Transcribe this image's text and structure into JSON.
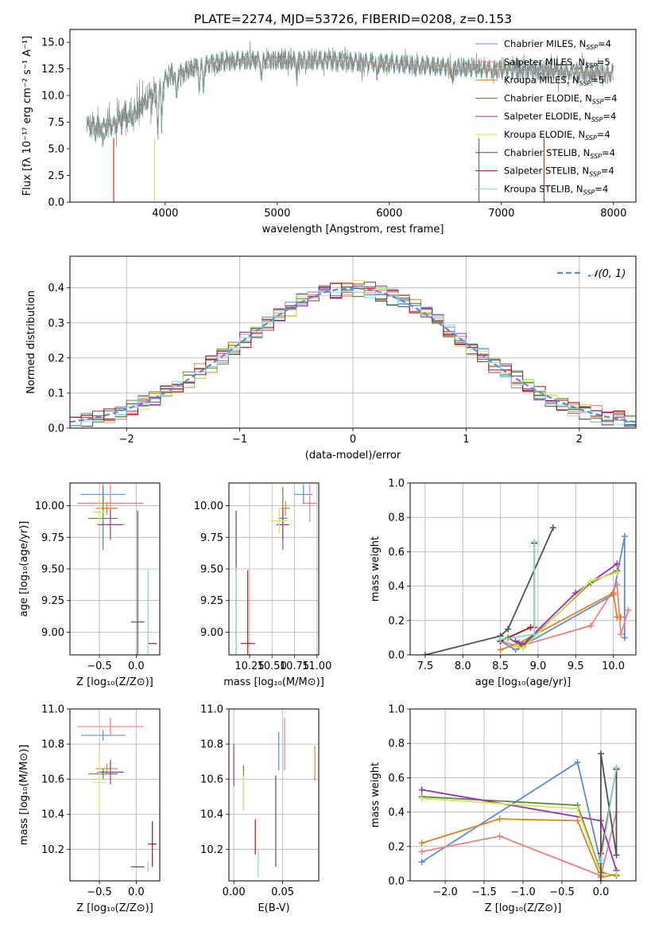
{
  "figure_title": "PLATE=2274, MJD=53726, FIBERID=0208, z=0.153",
  "colors": {
    "observed": "#808080",
    "Chabrier MILES": "#5a8bd8",
    "Salpeter MILES": "#f08080",
    "Kroupa MILES": "#e08020",
    "Chabrier ELODIE": "#5d8a3a",
    "Salpeter ELODIE": "#9a30b0",
    "Kroupa ELODIE": "#d6e45a",
    "Chabrier STELIB": "#505050",
    "Salpeter STELIB": "#b01010",
    "Kroupa STELIB": "#7fd8d8",
    "normal": "#5a8bd8"
  },
  "legend_spectrum": [
    {
      "label": "Chabrier MILES, N",
      "sub": "SSP",
      "tail": "=4"
    },
    {
      "label": "Salpeter MILES, N",
      "sub": "SSP",
      "tail": "=5"
    },
    {
      "label": "Kroupa MILES, N",
      "sub": "SSP",
      "tail": "=5"
    },
    {
      "label": "Chabrier ELODIE, N",
      "sub": "SSP",
      "tail": "=4"
    },
    {
      "label": "Salpeter ELODIE, N",
      "sub": "SSP",
      "tail": "=4"
    },
    {
      "label": "Kroupa ELODIE, N",
      "sub": "SSP",
      "tail": "=4"
    },
    {
      "label": "Chabrier STELIB, N",
      "sub": "SSP",
      "tail": "=4"
    },
    {
      "label": "Salpeter STELIB, N",
      "sub": "SSP",
      "tail": "=4"
    },
    {
      "label": "Kroupa STELIB, N",
      "sub": "SSP",
      "tail": "=4"
    }
  ],
  "legend_hist": "𝒩(0, 1)",
  "chart_data": [
    {
      "id": "spectrum",
      "type": "line",
      "xlabel": "wavelength [Angstrom, rest frame]",
      "ylabel": "Flux [fλ 10⁻¹⁷ erg cm⁻² s⁻¹ A⁻¹]",
      "xlim": [
        3150,
        8200
      ],
      "ylim": [
        0,
        16.2
      ],
      "xticks": [
        "4000",
        "5000",
        "6000",
        "7000",
        "8000"
      ],
      "yticks": [
        "0.0",
        "2.5",
        "5.0",
        "7.5",
        "10.0",
        "12.5",
        "15.0"
      ],
      "continuum": {
        "x": [
          3300,
          3500,
          3700,
          3900,
          4000,
          4200,
          4400,
          4700,
          5000,
          5500,
          6000,
          6500,
          7000,
          7500,
          8000
        ],
        "y": [
          7.2,
          7.0,
          8.0,
          10.2,
          11.5,
          12.4,
          13.0,
          13.3,
          13.3,
          13.3,
          13.0,
          12.7,
          12.4,
          12.3,
          12.1
        ]
      },
      "series": [
        "Chabrier MILES",
        "Salpeter MILES",
        "Kroupa MILES",
        "Chabrier ELODIE",
        "Salpeter ELODIE",
        "Kroupa ELODIE",
        "Chabrier STELIB",
        "Salpeter STELIB",
        "Kroupa STELIB"
      ]
    },
    {
      "id": "residuals",
      "type": "histogram",
      "xlabel": "(data-model)/error",
      "ylabel": "Normed distribution",
      "xlim": [
        -2.5,
        2.5
      ],
      "ylim": [
        0,
        0.49
      ],
      "xticks": [
        "−2",
        "−1",
        "0",
        "1",
        "2"
      ],
      "yticks": [
        "0.0",
        "0.1",
        "0.2",
        "0.3",
        "0.4"
      ],
      "bin_width": 0.1,
      "grid": true,
      "legend_location": "upper right"
    },
    {
      "id": "age_vs_Z",
      "type": "errorbar",
      "xlabel": "Z [log₁₀(Z/Z⊙)]",
      "ylabel": "age  [log₁₀(age/yr)]",
      "xlim": [
        -0.9,
        0.32
      ],
      "ylim": [
        8.82,
        10.18
      ],
      "xticks": [
        "−0.5",
        "0.0"
      ],
      "yticks": [
        "9.00",
        "9.25",
        "9.50",
        "9.75",
        "10.00"
      ],
      "points": [
        {
          "s": "Chabrier MILES",
          "x": -0.45,
          "y": 10.09,
          "ex": 0.3,
          "ey": 0.08
        },
        {
          "s": "Salpeter MILES",
          "x": -0.35,
          "y": 10.02,
          "ex": 0.45,
          "ey": 0.15
        },
        {
          "s": "Kroupa MILES",
          "x": -0.4,
          "y": 9.98,
          "ex": 0.15,
          "ey": 0.05
        },
        {
          "s": "Chabrier ELODIE",
          "x": -0.45,
          "y": 9.9,
          "ex": 0.2,
          "ey": 0.25
        },
        {
          "s": "Salpeter ELODIE",
          "x": -0.35,
          "y": 9.85,
          "ex": 0.18,
          "ey": 0.12
        },
        {
          "s": "Kroupa ELODIE",
          "x": -0.5,
          "y": 9.95,
          "ex": 0.1,
          "ey": 0.1
        },
        {
          "s": "Chabrier STELIB",
          "x": 0.02,
          "y": 9.08,
          "ex": 0.09,
          "ey": 0.88
        },
        {
          "s": "Salpeter STELIB",
          "x": 0.22,
          "y": 8.91,
          "ex": 0.06,
          "ey": 0.0
        },
        {
          "s": "Kroupa STELIB",
          "x": 0.16,
          "y": 9.0,
          "ex": 0.0,
          "ey": 0.5
        }
      ]
    },
    {
      "id": "age_vs_mass",
      "type": "errorbar",
      "xlabel": "mass [log₁₀(M/M⊙)]",
      "ylabel": "",
      "xlim": [
        10.02,
        11.02
      ],
      "ylim": [
        8.82,
        10.18
      ],
      "xticks": [
        "10.25",
        "10.50",
        "10.75",
        "11.00"
      ],
      "yticks": [
        "9.00",
        "9.25",
        "9.50",
        "9.75",
        "10.00"
      ],
      "points": [
        {
          "s": "Chabrier MILES",
          "x": 10.85,
          "y": 10.09,
          "ex": 0.1,
          "ey": 0.08
        },
        {
          "s": "Salpeter MILES",
          "x": 10.92,
          "y": 10.02,
          "ex": 0.08,
          "ey": 0.15
        },
        {
          "s": "Kroupa MILES",
          "x": 10.65,
          "y": 9.98,
          "ex": 0.05,
          "ey": 0.06
        },
        {
          "s": "Chabrier ELODIE",
          "x": 10.62,
          "y": 9.9,
          "ex": 0.05,
          "ey": 0.25
        },
        {
          "s": "Salpeter ELODIE",
          "x": 10.62,
          "y": 9.85,
          "ex": 0.07,
          "ey": 0.12
        },
        {
          "s": "Kroupa ELODIE",
          "x": 10.58,
          "y": 9.88,
          "ex": 0.1,
          "ey": 0.1
        },
        {
          "s": "Chabrier STELIB",
          "x": 10.1,
          "y": 9.08,
          "ex": 0.0,
          "ey": 0.88
        },
        {
          "s": "Salpeter STELIB",
          "x": 10.23,
          "y": 8.91,
          "ex": 0.08,
          "ey": 0.58
        },
        {
          "s": "Kroupa STELIB",
          "x": 10.1,
          "y": 8.91,
          "ex": 0.0,
          "ey": 0.6
        }
      ]
    },
    {
      "id": "mw_vs_age",
      "type": "line",
      "xlabel": "age  [log₁₀(age/yr)]",
      "ylabel": "mass weight",
      "xlim": [
        7.3,
        10.3
      ],
      "ylim": [
        0,
        1
      ],
      "xticks": [
        "7.5",
        "8.0",
        "8.5",
        "9.0",
        "9.5",
        "10.0"
      ],
      "yticks": [
        "0.0",
        "0.2",
        "0.4",
        "0.6",
        "0.8",
        "1.0"
      ],
      "series": [
        {
          "s": "Chabrier MILES",
          "x": [
            8.5,
            8.7,
            10.0,
            10.15,
            10.15
          ],
          "y": [
            0.08,
            0.03,
            0.35,
            0.69,
            0.1
          ]
        },
        {
          "s": "Salpeter MILES",
          "x": [
            8.5,
            8.75,
            9.7,
            10.05,
            10.1,
            10.2
          ],
          "y": [
            0.08,
            0.05,
            0.17,
            0.41,
            0.12,
            0.26
          ]
        },
        {
          "s": "Kroupa MILES",
          "x": [
            8.5,
            8.75,
            10.0,
            10.05,
            10.1
          ],
          "y": [
            0.03,
            0.07,
            0.36,
            0.22,
            0.22
          ]
        },
        {
          "s": "Chabrier ELODIE",
          "x": [
            8.6,
            8.8,
            9.7,
            10.05
          ],
          "y": [
            0.1,
            0.05,
            0.42,
            0.49
          ]
        },
        {
          "s": "Salpeter ELODIE",
          "x": [
            8.7,
            8.8,
            9.5,
            10.05
          ],
          "y": [
            0.08,
            0.06,
            0.36,
            0.53
          ]
        },
        {
          "s": "Kroupa ELODIE",
          "x": [
            8.7,
            8.8,
            9.7,
            10.05
          ],
          "y": [
            0.05,
            0.04,
            0.43,
            0.48
          ]
        },
        {
          "s": "Chabrier STELIB",
          "x": [
            7.5,
            8.5,
            8.6,
            9.2
          ],
          "y": [
            0.0,
            0.11,
            0.15,
            0.74
          ]
        },
        {
          "s": "Salpeter STELIB",
          "x": [
            8.5,
            8.9,
            8.95,
            8.95
          ],
          "y": [
            0.08,
            0.16,
            0.16,
            0.65
          ]
        },
        {
          "s": "Kroupa STELIB",
          "x": [
            8.5,
            8.95,
            8.95
          ],
          "y": [
            0.09,
            0.12,
            0.66
          ]
        }
      ]
    },
    {
      "id": "mass_vs_Z",
      "type": "errorbar",
      "xlabel": "Z [log₁₀(Z/Z⊙)]",
      "ylabel": "mass [log₁₀(M/M⊙)]",
      "xlim": [
        -0.9,
        0.32
      ],
      "ylim": [
        10.02,
        11.0
      ],
      "xticks": [
        "−0.5",
        "0.0"
      ],
      "yticks": [
        "10.2",
        "10.4",
        "10.6",
        "10.8",
        "11.0"
      ],
      "points": [
        {
          "s": "Chabrier MILES",
          "x": -0.45,
          "y": 10.85,
          "ex": 0.3,
          "ey": 0.03
        },
        {
          "s": "Salpeter MILES",
          "x": -0.35,
          "y": 10.9,
          "ex": 0.45,
          "ey": 0.05
        },
        {
          "s": "Kroupa MILES",
          "x": -0.4,
          "y": 10.66,
          "ex": 0.15,
          "ey": 0.03
        },
        {
          "s": "Chabrier ELODIE",
          "x": -0.45,
          "y": 10.63,
          "ex": 0.2,
          "ey": 0.03
        },
        {
          "s": "Salpeter ELODIE",
          "x": -0.35,
          "y": 10.64,
          "ex": 0.18,
          "ey": 0.07
        },
        {
          "s": "Kroupa ELODIE",
          "x": -0.5,
          "y": 10.58,
          "ex": 0.1,
          "ey": 0.16
        },
        {
          "s": "Chabrier STELIB",
          "x": 0.02,
          "y": 10.1,
          "ex": 0.09,
          "ey": 0.0
        },
        {
          "s": "Salpeter STELIB",
          "x": 0.22,
          "y": 10.23,
          "ex": 0.06,
          "ey": 0.13
        },
        {
          "s": "Kroupa STELIB",
          "x": 0.16,
          "y": 10.1,
          "ex": 0.0,
          "ey": 0.03
        }
      ]
    },
    {
      "id": "mass_vs_EBV",
      "type": "errorbar",
      "xlabel": "E(B-V)",
      "ylabel": "",
      "xlim": [
        -0.005,
        0.087
      ],
      "ylim": [
        10.02,
        11.0
      ],
      "xticks": [
        "0.00",
        "0.05"
      ],
      "yticks": [
        "10.2",
        "10.4",
        "10.6",
        "10.8",
        "11.0"
      ],
      "points": [
        {
          "s": "Chabrier MILES",
          "x": 0.046,
          "y": 10.76,
          "ex": 0.0,
          "ey": 0.11
        },
        {
          "s": "Salpeter MILES",
          "x": 0.052,
          "y": 10.8,
          "ex": 0.0,
          "ey": 0.15
        },
        {
          "s": "Kroupa MILES",
          "x": 0.083,
          "y": 10.69,
          "ex": 0.0,
          "ey": 0.1
        },
        {
          "s": "Chabrier ELODIE",
          "x": 0.01,
          "y": 10.55,
          "ex": 0.0,
          "ey": 0.13
        },
        {
          "s": "Salpeter ELODIE",
          "x": 0.0,
          "y": 10.68,
          "ex": 0.0,
          "ey": 0.12
        },
        {
          "s": "Kroupa ELODIE",
          "x": 0.01,
          "y": 10.52,
          "ex": 0.0,
          "ey": 0.1
        },
        {
          "s": "Chabrier STELIB",
          "x": 0.043,
          "y": 10.36,
          "ex": 0.0,
          "ey": 0.26
        },
        {
          "s": "Salpeter STELIB",
          "x": 0.022,
          "y": 10.27,
          "ex": 0.0,
          "ey": 0.1
        },
        {
          "s": "Kroupa STELIB",
          "x": 0.025,
          "y": 10.12,
          "ex": 0.0,
          "ey": 0.08
        }
      ]
    },
    {
      "id": "mw_vs_Z",
      "type": "line",
      "xlabel": "Z [log₁₀(Z/Z⊙)]",
      "ylabel": "mass weight",
      "xlim": [
        -2.45,
        0.45
      ],
      "ylim": [
        0,
        1
      ],
      "xticks": [
        "−2.0",
        "−1.5",
        "−1.0",
        "−0.5",
        "0.0"
      ],
      "yticks": [
        "0.0",
        "0.2",
        "0.4",
        "0.6",
        "0.8",
        "1.0"
      ],
      "series": [
        {
          "s": "Chabrier MILES",
          "x": [
            -2.3,
            -0.3,
            0.0
          ],
          "y": [
            0.11,
            0.69,
            0.1
          ]
        },
        {
          "s": "Salpeter MILES",
          "x": [
            -2.3,
            -1.3,
            0.0,
            0.2
          ],
          "y": [
            0.17,
            0.26,
            0.03,
            0.4
          ]
        },
        {
          "s": "Kroupa MILES",
          "x": [
            -2.3,
            -1.3,
            -0.3,
            0.0,
            0.2
          ],
          "y": [
            0.22,
            0.36,
            0.35,
            0.02,
            0.04
          ]
        },
        {
          "s": "Chabrier ELODIE",
          "x": [
            -2.3,
            -0.3,
            0.0,
            0.2
          ],
          "y": [
            0.49,
            0.44,
            0.05,
            0.03
          ]
        },
        {
          "s": "Salpeter ELODIE",
          "x": [
            -2.3,
            0.0,
            0.2
          ],
          "y": [
            0.53,
            0.35,
            0.06
          ]
        },
        {
          "s": "Kroupa ELODIE",
          "x": [
            -2.3,
            -0.3,
            0.0,
            0.2
          ],
          "y": [
            0.48,
            0.42,
            0.04,
            0.04
          ]
        },
        {
          "s": "Chabrier STELIB",
          "x": [
            0.0,
            0.0,
            0.2,
            0.2
          ],
          "y": [
            0.0,
            0.74,
            0.15,
            0.65
          ]
        },
        {
          "s": "Salpeter STELIB",
          "x": [
            0.0,
            0.2
          ],
          "y": [
            0.16,
            0.65
          ]
        },
        {
          "s": "Kroupa STELIB",
          "x": [
            0.0,
            0.2
          ],
          "y": [
            0.12,
            0.66
          ]
        }
      ]
    }
  ]
}
